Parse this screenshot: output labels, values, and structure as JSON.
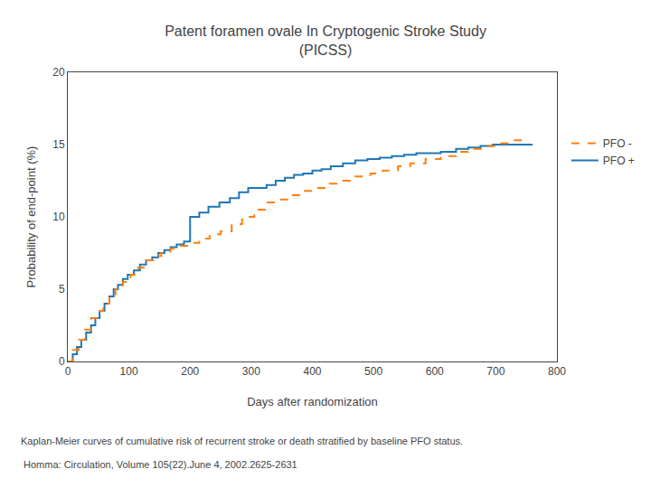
{
  "chart_data": {
    "type": "step",
    "title": "Patent foramen ovale In Cryptogenic Stroke Study\n(PICSS)",
    "x_label": "Days after randomization",
    "y_label": "Probability of end-point (%)",
    "xlim": [
      0,
      800
    ],
    "ylim": [
      0,
      20
    ],
    "xticks": [
      0,
      100,
      200,
      300,
      400,
      500,
      600,
      700,
      800
    ],
    "yticks": [
      0,
      5,
      10,
      15,
      20
    ],
    "grid": false,
    "legend": "right",
    "annotations": [
      "Kaplan-Meier curves of cumulative risk of recurrent stroke or death stratified by baseline PFO status.",
      " Homma: Circulation, Volume 105(22).June 4, 2002.2625-2631"
    ],
    "series": [
      {
        "name": "PFO +",
        "line_style": "solid",
        "x": [
          0,
          8,
          15,
          22,
          30,
          38,
          45,
          52,
          60,
          68,
          75,
          82,
          90,
          98,
          108,
          118,
          128,
          138,
          148,
          158,
          168,
          178,
          190,
          200,
          215,
          230,
          248,
          265,
          280,
          295,
          310,
          325,
          340,
          355,
          370,
          385,
          400,
          415,
          430,
          450,
          470,
          490,
          510,
          530,
          550,
          570,
          590,
          610,
          635,
          655,
          675,
          695,
          715,
          740,
          760
        ],
        "values": [
          0,
          0.5,
          1.0,
          1.5,
          2.0,
          2.5,
          3.0,
          3.5,
          4.0,
          4.5,
          5.0,
          5.3,
          5.7,
          6.0,
          6.3,
          6.7,
          7.0,
          7.2,
          7.5,
          7.7,
          7.9,
          8.1,
          8.3,
          10.0,
          10.3,
          10.7,
          11.0,
          11.3,
          11.7,
          12.0,
          12.0,
          12.2,
          12.5,
          12.7,
          12.9,
          13.0,
          13.2,
          13.3,
          13.5,
          13.7,
          13.9,
          14.0,
          14.1,
          14.2,
          14.3,
          14.4,
          14.4,
          14.5,
          14.7,
          14.8,
          14.9,
          15.0,
          15.0,
          15.0,
          15.0
        ]
      },
      {
        "name": "PFO -",
        "line_style": "dashed",
        "x": [
          0,
          8,
          18,
          28,
          38,
          48,
          58,
          68,
          78,
          90,
          103,
          115,
          128,
          140,
          153,
          168,
          185,
          200,
          215,
          232,
          250,
          268,
          285,
          305,
          325,
          345,
          365,
          385,
          408,
          428,
          450,
          470,
          495,
          515,
          540,
          560,
          585,
          610,
          635,
          655,
          678,
          700,
          725,
          745
        ],
        "values": [
          0,
          0.8,
          1.5,
          2.2,
          3.0,
          3.5,
          4.0,
          4.5,
          5.0,
          5.5,
          6.0,
          6.5,
          7.0,
          7.3,
          7.5,
          7.8,
          8.0,
          8.2,
          8.5,
          8.8,
          9.0,
          9.5,
          10.0,
          10.5,
          11.0,
          11.2,
          11.5,
          11.8,
          12.0,
          12.3,
          12.5,
          12.8,
          13.0,
          13.2,
          13.5,
          13.7,
          14.0,
          14.2,
          14.5,
          14.7,
          14.9,
          15.1,
          15.3,
          15.5
        ]
      }
    ]
  }
}
